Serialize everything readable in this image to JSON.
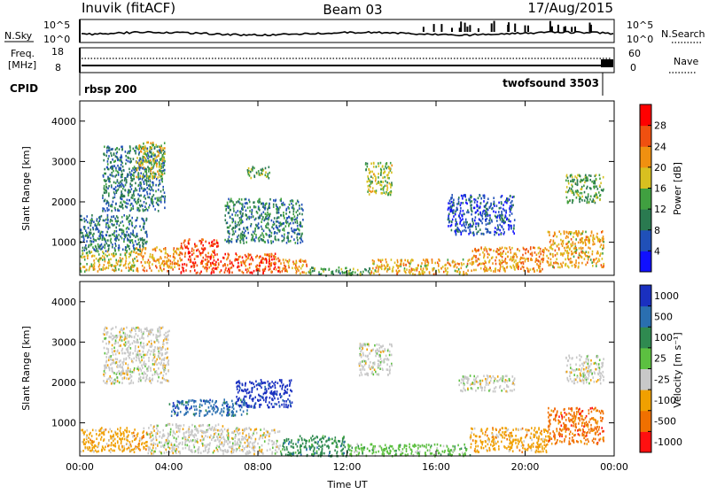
{
  "header": {
    "station": "Inuvik (fitACF)",
    "beam": "Beam 03",
    "date": "17/Aug/2015"
  },
  "nsky_panel": {
    "left_label": "N.Sky",
    "left_ticks": [
      "10^5",
      "10^0"
    ],
    "right_ticks": [
      "10^5",
      "10^0"
    ],
    "right_label": "N.Search",
    "right_legend_style": "dotted"
  },
  "freq_panel": {
    "left_label_line1": "Freq.",
    "left_label_line2": "[MHz]",
    "left_ticks": [
      "18",
      "8"
    ],
    "right_ticks": [
      "60",
      "0"
    ],
    "right_label": "Nave",
    "right_legend_style": "dotted"
  },
  "cpid_panel": {
    "label": "CPID",
    "programs": [
      {
        "name": "rbsp 200",
        "start_hour": 0
      },
      {
        "name": "twofsound 3503",
        "start_hour": 23.4
      }
    ]
  },
  "chart_data": [
    {
      "type": "heatmap",
      "name": "power",
      "ylabel": "Slant Range [km]",
      "xlabel": "",
      "xlim": [
        0,
        24
      ],
      "ylim": [
        180,
        4500
      ],
      "x_ticks": [],
      "y_ticks": [
        "1000",
        "2000",
        "3000",
        "4000"
      ],
      "y_tick_values": [
        1000,
        2000,
        3000,
        4000
      ],
      "colorbar": {
        "label": "Power [dB]",
        "ticks": [
          "4",
          "8",
          "12",
          "16",
          "20",
          "24",
          "28"
        ],
        "tick_values": [
          4,
          8,
          12,
          16,
          20,
          24,
          28
        ],
        "range": [
          0,
          30
        ],
        "colors": [
          "#1010ff",
          "#2050b8",
          "#2a7a50",
          "#40a040",
          "#d8c020",
          "#f09010",
          "#f05010",
          "#ff0000"
        ]
      },
      "regions": [
        {
          "h0": 0.0,
          "h1": 2.5,
          "r0": 300,
          "r1": 800,
          "value": 18
        },
        {
          "h0": 2.5,
          "h1": 4.5,
          "r0": 300,
          "r1": 900,
          "value": 22
        },
        {
          "h0": 4.5,
          "h1": 6.2,
          "r0": 250,
          "r1": 1100,
          "value": 27
        },
        {
          "h0": 6.2,
          "h1": 9.0,
          "r0": 250,
          "r1": 750,
          "value": 26
        },
        {
          "h0": 9.0,
          "h1": 10.2,
          "r0": 250,
          "r1": 600,
          "value": 22
        },
        {
          "h0": 10.2,
          "h1": 13.0,
          "r0": 200,
          "r1": 400,
          "value": 12
        },
        {
          "h0": 13.0,
          "h1": 17.5,
          "r0": 220,
          "r1": 600,
          "value": 20
        },
        {
          "h0": 17.5,
          "h1": 21.0,
          "r0": 300,
          "r1": 900,
          "value": 22
        },
        {
          "h0": 21.0,
          "h1": 23.5,
          "r0": 400,
          "r1": 1300,
          "value": 20
        },
        {
          "h0": 0.0,
          "h1": 3.0,
          "r0": 800,
          "r1": 1700,
          "value": 9
        },
        {
          "h0": 1.0,
          "h1": 3.8,
          "r0": 1800,
          "r1": 3400,
          "value": 9
        },
        {
          "h0": 2.5,
          "h1": 3.8,
          "r0": 2600,
          "r1": 3500,
          "value": 17
        },
        {
          "h0": 6.5,
          "h1": 10.0,
          "r0": 1000,
          "r1": 2100,
          "value": 10
        },
        {
          "h0": 7.5,
          "h1": 8.5,
          "r0": 2600,
          "r1": 2900,
          "value": 13
        },
        {
          "h0": 12.8,
          "h1": 14.0,
          "r0": 2200,
          "r1": 3000,
          "value": 16
        },
        {
          "h0": 16.5,
          "h1": 19.5,
          "r0": 1200,
          "r1": 2200,
          "value": 6
        },
        {
          "h0": 21.8,
          "h1": 23.5,
          "r0": 2000,
          "r1": 2700,
          "value": 14
        }
      ]
    },
    {
      "type": "heatmap",
      "name": "velocity",
      "ylabel": "Slant Range [km]",
      "xlabel": "Time UT",
      "xlim": [
        0,
        24
      ],
      "ylim": [
        180,
        4500
      ],
      "x_ticks": [
        "00:00",
        "04:00",
        "08:00",
        "12:00",
        "16:00",
        "20:00",
        "00:00"
      ],
      "x_tick_values": [
        0,
        4,
        8,
        12,
        16,
        20,
        24
      ],
      "y_ticks": [
        "1000",
        "2000",
        "3000",
        "4000"
      ],
      "y_tick_values": [
        1000,
        2000,
        3000,
        4000
      ],
      "colorbar": {
        "label": "Velocity [m s⁻¹]",
        "ticks": [
          "1000",
          "500",
          "100",
          "25",
          "-25",
          "-100",
          "-500",
          "-1000"
        ],
        "colors": [
          "#1a30c0",
          "#2a6fb0",
          "#2f8a50",
          "#5cc040",
          "#c8c8c8",
          "#f0a000",
          "#f07000",
          "#ff1010"
        ]
      },
      "regions": [
        {
          "h0": 0.0,
          "h1": 3.0,
          "r0": 300,
          "r1": 900,
          "category": "-100"
        },
        {
          "h0": 3.0,
          "h1": 6.5,
          "r0": 250,
          "r1": 1000,
          "category": "-25"
        },
        {
          "h0": 6.5,
          "h1": 9.0,
          "r0": 250,
          "r1": 900,
          "category": "-25"
        },
        {
          "h0": 9.0,
          "h1": 12.0,
          "r0": 200,
          "r1": 700,
          "category": "100"
        },
        {
          "h0": 12.0,
          "h1": 17.5,
          "r0": 200,
          "r1": 500,
          "category": "25"
        },
        {
          "h0": 17.5,
          "h1": 21.0,
          "r0": 300,
          "r1": 900,
          "category": "-100"
        },
        {
          "h0": 21.0,
          "h1": 23.5,
          "r0": 500,
          "r1": 1400,
          "category": "-500"
        },
        {
          "h0": 1.0,
          "h1": 4.0,
          "r0": 2000,
          "r1": 3400,
          "category": "-25"
        },
        {
          "h0": 4.0,
          "h1": 7.5,
          "r0": 1200,
          "r1": 1600,
          "category": "500"
        },
        {
          "h0": 7.0,
          "h1": 9.5,
          "r0": 1400,
          "r1": 2100,
          "category": "1000"
        },
        {
          "h0": 12.5,
          "h1": 14.0,
          "r0": 2200,
          "r1": 3000,
          "category": "-25"
        },
        {
          "h0": 17.0,
          "h1": 19.5,
          "r0": 1800,
          "r1": 2200,
          "category": "-25"
        },
        {
          "h0": 21.8,
          "h1": 23.5,
          "r0": 2000,
          "r1": 2700,
          "category": "-25"
        }
      ]
    }
  ]
}
